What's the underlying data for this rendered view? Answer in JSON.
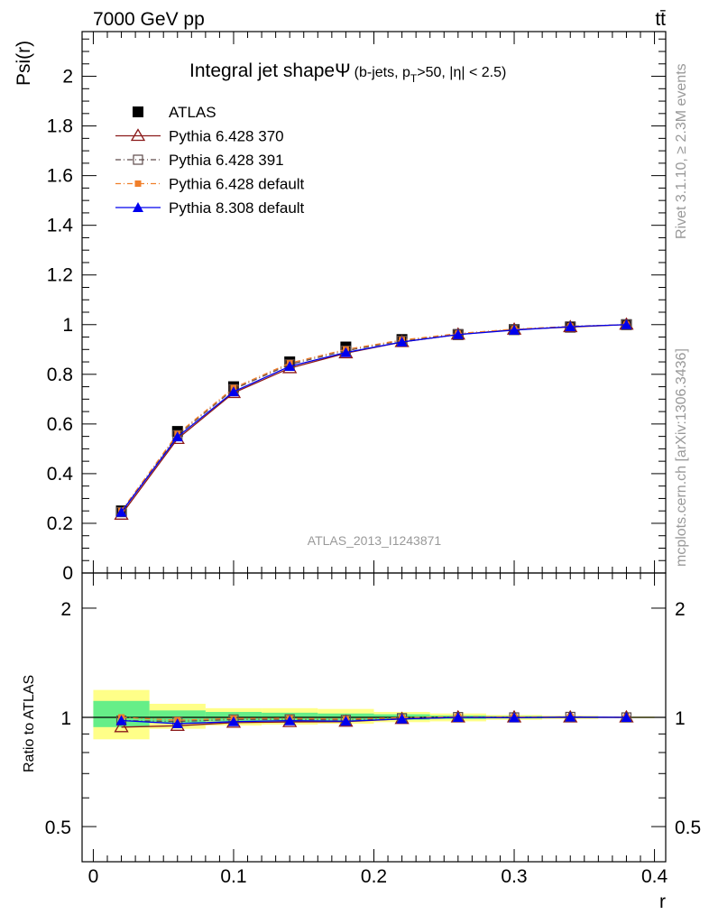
{
  "header": {
    "left": "7000 GeV pp",
    "right": "tt̄"
  },
  "side_text": {
    "rivet": "Rivet 3.1.10, ≥ 2.3M events",
    "mcplots": "mcplots.cern.ch [arXiv:1306.3436]"
  },
  "chart_data": [
    {
      "type": "line",
      "title": "Integral jet shape",
      "title_symbol": "Ψ",
      "subtitle": "(b-jets, p_T>50, |η| < 2.5)",
      "subtitle_parts": {
        "open": "(b-jets, p",
        "sub": "T",
        "rest": ">50, |η| < 2.5)"
      },
      "watermark": "ATLAS_2013_I1243871",
      "ylabel": "Psi(r)",
      "xlabel": "r",
      "xlim": [
        -0.008,
        0.408
      ],
      "ylim": [
        0,
        2.18
      ],
      "yticks": [
        0,
        0.2,
        0.4,
        0.6,
        0.8,
        1,
        1.2,
        1.4,
        1.6,
        1.8,
        2
      ],
      "ytick_labels": [
        "0",
        "0.2",
        "0.4",
        "0.6",
        "0.8",
        "1",
        "1.2",
        "1.4",
        "1.6",
        "1.8",
        "2"
      ],
      "x": [
        0.02,
        0.06,
        0.1,
        0.14,
        0.18,
        0.22,
        0.26,
        0.3,
        0.34,
        0.38
      ],
      "series": [
        {
          "name": "ATLAS",
          "color": "#000000",
          "marker": "filled-square",
          "line": "none",
          "values": [
            0.25,
            0.57,
            0.75,
            0.85,
            0.91,
            0.94,
            0.96,
            0.98,
            0.99,
            1.0
          ]
        },
        {
          "name": "Pythia 6.428 370",
          "color": "#8b1a1a",
          "marker": "open-triangle",
          "line": "solid",
          "values": [
            0.235,
            0.54,
            0.725,
            0.825,
            0.885,
            0.93,
            0.96,
            0.98,
            0.99,
            1.0
          ]
        },
        {
          "name": "Pythia 6.428 391",
          "color": "#5e4b4b",
          "marker": "open-square",
          "line": "dash-dot",
          "values": [
            0.245,
            0.555,
            0.74,
            0.84,
            0.895,
            0.935,
            0.962,
            0.98,
            0.993,
            1.0
          ]
        },
        {
          "name": "Pythia 6.428 default",
          "color": "#f07f2a",
          "marker": "small-filled-square",
          "line": "dash-dot",
          "values": [
            0.25,
            0.56,
            0.745,
            0.845,
            0.9,
            0.938,
            0.964,
            0.982,
            0.993,
            1.0
          ]
        },
        {
          "name": "Pythia 8.308 default",
          "color": "#0000ee",
          "marker": "filled-triangle",
          "line": "solid",
          "values": [
            0.245,
            0.548,
            0.73,
            0.832,
            0.888,
            0.93,
            0.96,
            0.978,
            0.992,
            1.0
          ]
        }
      ],
      "legend_placement": "top-left"
    },
    {
      "type": "line",
      "ylabel": "Ratio to ATLAS",
      "xlabel": "r",
      "scale": "log",
      "xlim": [
        -0.008,
        0.408
      ],
      "ylim": [
        0.4,
        2.5
      ],
      "yticks": [
        0.5,
        1,
        2
      ],
      "ytick_labels": [
        "0.5",
        "1",
        "2"
      ],
      "xticks": [
        0,
        0.1,
        0.2,
        0.3,
        0.4
      ],
      "xtick_labels": [
        "0",
        "0.1",
        "0.2",
        "0.3",
        "0.4"
      ],
      "x": [
        0.02,
        0.06,
        0.1,
        0.14,
        0.18,
        0.22,
        0.26,
        0.3,
        0.34,
        0.38
      ],
      "bands": {
        "edges": [
          0.0,
          0.04,
          0.08,
          0.12,
          0.16,
          0.2,
          0.24,
          0.28,
          0.32,
          0.36,
          0.4
        ],
        "yellow": [
          [
            0.87,
            1.19
          ],
          [
            0.93,
            1.09
          ],
          [
            0.95,
            1.06
          ],
          [
            0.955,
            1.06
          ],
          [
            0.96,
            1.055
          ],
          [
            0.97,
            1.035
          ],
          [
            0.975,
            1.025
          ],
          [
            0.985,
            1.015
          ],
          [
            0.99,
            1.01
          ],
          [
            0.995,
            1.005
          ]
        ],
        "green": [
          [
            0.94,
            1.11
          ],
          [
            0.965,
            1.045
          ],
          [
            0.975,
            1.035
          ],
          [
            0.975,
            1.03
          ],
          [
            0.98,
            1.025
          ],
          [
            0.985,
            1.02
          ],
          [
            0.99,
            1.012
          ],
          [
            0.993,
            1.008
          ],
          [
            0.996,
            1.005
          ],
          [
            0.998,
            1.002
          ]
        ],
        "yellow_color": "#ffff88",
        "green_color": "#66ee88"
      },
      "series": [
        {
          "name": "Pythia 6.428 370",
          "color": "#8b1a1a",
          "marker": "open-triangle",
          "line": "solid",
          "values": [
            0.94,
            0.948,
            0.967,
            0.971,
            0.973,
            0.99,
            1.0,
            1.0,
            1.0,
            1.0
          ]
        },
        {
          "name": "Pythia 6.428 391",
          "color": "#5e4b4b",
          "marker": "open-square",
          "line": "dash-dot",
          "values": [
            0.98,
            0.974,
            0.987,
            0.988,
            0.984,
            0.995,
            1.002,
            1.0,
            1.003,
            1.0
          ]
        },
        {
          "name": "Pythia 6.428 default",
          "color": "#f07f2a",
          "marker": "small-filled-square",
          "line": "dash-dot",
          "values": [
            1.0,
            0.982,
            0.993,
            0.994,
            0.989,
            0.998,
            1.004,
            1.002,
            1.003,
            1.0
          ]
        },
        {
          "name": "Pythia 8.308 default",
          "color": "#0000ee",
          "marker": "filled-triangle",
          "line": "solid",
          "values": [
            0.98,
            0.961,
            0.973,
            0.979,
            0.976,
            0.99,
            1.0,
            0.998,
            1.002,
            1.0
          ]
        }
      ]
    }
  ]
}
